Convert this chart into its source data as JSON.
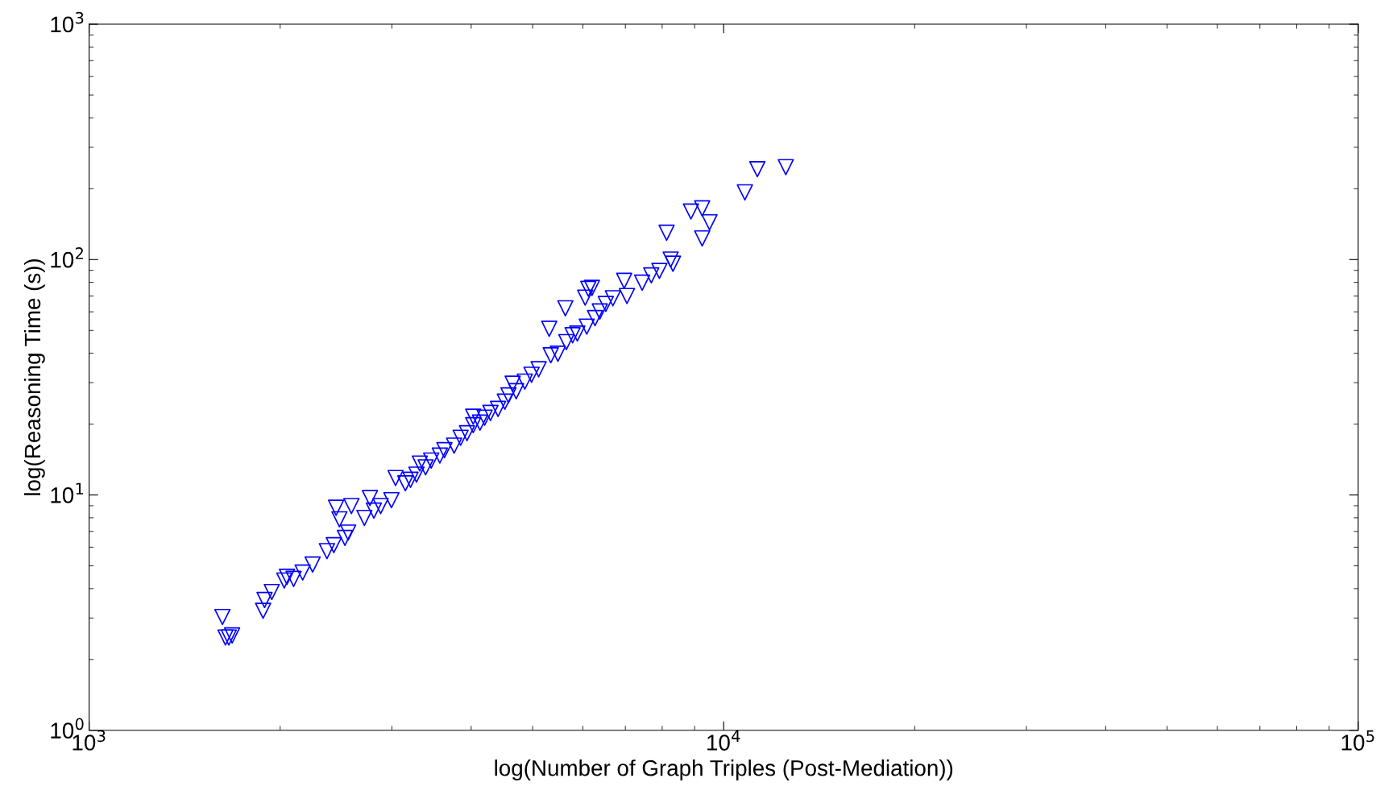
{
  "chart_data": {
    "type": "scatter",
    "xlabel": "log(Number of Graph Triples (Post-Mediation))",
    "ylabel": "log(Reasoning Time (s))",
    "log": "xy",
    "marker": "triangle_down",
    "grid": false,
    "legend": false,
    "xlim": [
      1000,
      100000
    ],
    "ylim": [
      1,
      1000
    ],
    "xticks": [
      {
        "value": 1000,
        "label": "10$^{3}$"
      },
      {
        "value": 10000,
        "label": "10$^{4}$"
      },
      {
        "value": 100000,
        "label": "10$^{5}$"
      }
    ],
    "yticks": [
      {
        "value": 1,
        "label": "10$^{0}$"
      },
      {
        "value": 10,
        "label": "10$^{1}$"
      },
      {
        "value": 100,
        "label": "10$^{2}$"
      },
      {
        "value": 1000,
        "label": "10$^{3}$"
      }
    ],
    "series": [
      {
        "color": "#0000ff",
        "x": [
          1622,
          1640,
          1660,
          1680,
          1880,
          1890,
          1940,
          2030,
          2050,
          2100,
          2170,
          2250,
          2370,
          2430,
          2450,
          2480,
          2530,
          2560,
          2590,
          2715,
          2770,
          2810,
          2880,
          2995,
          3040,
          3150,
          3210,
          3280,
          3320,
          3390,
          3460,
          3570,
          3630,
          3760,
          3850,
          3940,
          4030,
          4030,
          4130,
          4200,
          4290,
          4410,
          4520,
          4580,
          4650,
          4710,
          4860,
          4980,
          5110,
          5310,
          5340,
          5480,
          5630,
          5650,
          5780,
          5880,
          6085,
          6050,
          6120,
          6200,
          6270,
          6380,
          6520,
          6690,
          6970,
          7040,
          7440,
          7690,
          7920,
          8130,
          8250,
          8320,
          8880,
          9250,
          9250,
          9500,
          10800,
          11300,
          12530
        ],
        "values": [
          3.03,
          2.48,
          2.48,
          2.53,
          3.22,
          3.58,
          3.87,
          4.33,
          4.49,
          4.4,
          4.68,
          5.06,
          5.77,
          6.12,
          8.82,
          7.88,
          6.57,
          6.92,
          8.97,
          7.99,
          9.7,
          8.58,
          8.97,
          9.5,
          11.8,
          11.2,
          11.6,
          12.2,
          13.6,
          13.1,
          14.0,
          14.7,
          15.5,
          16.2,
          17.5,
          18.3,
          19.8,
          21.5,
          20.3,
          21.3,
          22.3,
          23.2,
          24.9,
          26.5,
          29.7,
          27.6,
          30.3,
          32.4,
          34.2,
          50.8,
          39.2,
          39.8,
          62.1,
          44.6,
          47.7,
          48.5,
          51.9,
          68.9,
          75.1,
          75.8,
          56.4,
          60.2,
          64.8,
          68.5,
          81.2,
          70.0,
          79.8,
          85.7,
          89.5,
          130,
          100,
          96,
          160,
          165,
          123,
          144,
          193,
          242,
          247
        ]
      }
    ]
  }
}
